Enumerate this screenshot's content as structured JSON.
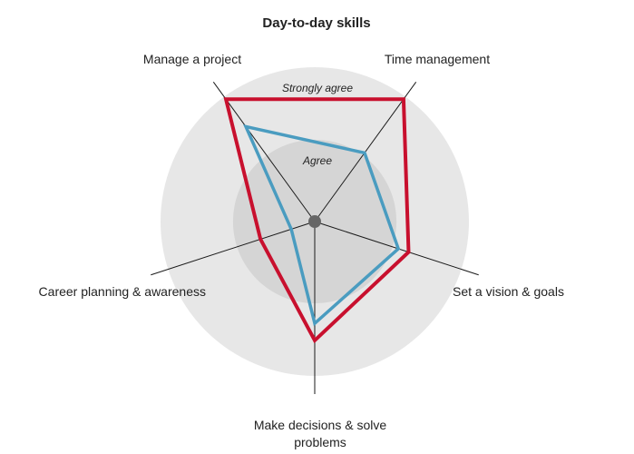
{
  "chart_data": {
    "type": "radar",
    "title": "Day-to-day skills",
    "axes": [
      {
        "label": [
          "Manage a project"
        ],
        "angle_deg": -36
      },
      {
        "label": [
          "Time management"
        ],
        "angle_deg": 36
      },
      {
        "label": [
          "Set a vision & goals"
        ],
        "angle_deg": 108
      },
      {
        "label": [
          "Make decisions & solve",
          "problems"
        ],
        "angle_deg": 180
      },
      {
        "label": [
          "Career planning & awareness"
        ],
        "angle_deg": 252
      }
    ],
    "rings": [
      {
        "label": "Agree",
        "level": 0.53
      },
      {
        "label": "Strongly agree",
        "level": 1.0
      }
    ],
    "range": [
      0,
      1
    ],
    "series": [
      {
        "values": [
          0.98,
          0.98,
          0.64,
          0.77,
          0.37
        ],
        "color": "#c8102e"
      },
      {
        "values": [
          0.76,
          0.55,
          0.57,
          0.66,
          0.16
        ],
        "color": "#4a9cc0"
      }
    ],
    "colors": {
      "outer_ring": "#e7e7e7",
      "inner_ring": "#d5d5d5",
      "axis_line": "#1a1a1a",
      "center_dot": "#666666"
    },
    "legend": "none"
  }
}
